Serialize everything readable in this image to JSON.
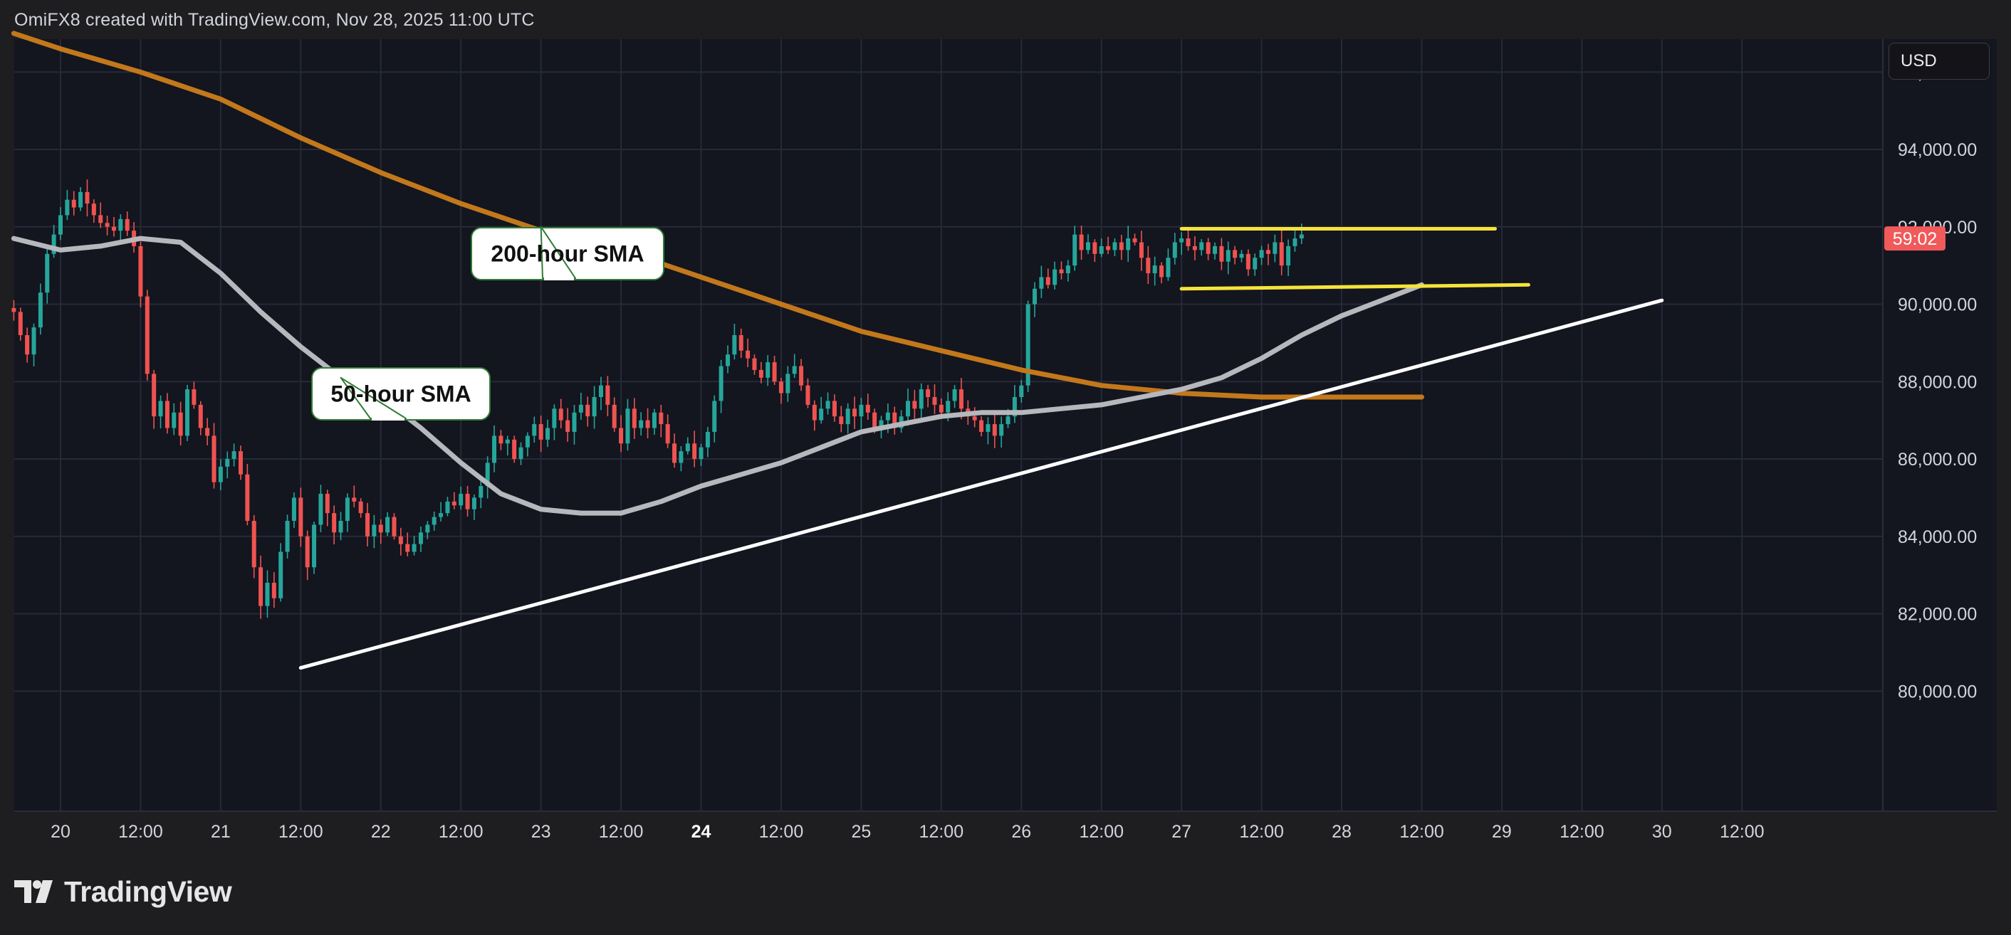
{
  "header": {
    "attribution": "OmiFX8 created with TradingView.com, Nov 28, 2025 11:00 UTC"
  },
  "currency_button": "USD",
  "logo": {
    "text": "TradingView",
    "icon": "tradingview-logo-icon"
  },
  "colors": {
    "background": "#1e1e21",
    "plot_background": "#13151f",
    "grid": "#262a38",
    "up": "#26a69a",
    "down": "#ef5350",
    "sma50": "#b6b8be",
    "sma200": "#c2781b",
    "trendline": "#ffffff",
    "range": "#f6e33a",
    "price_tag": "#f05a5a"
  },
  "chart_data": {
    "type": "candlestick",
    "title": "",
    "ylim": [
      78800,
      98500
    ],
    "y_ticks": [
      "96,000.00",
      "94,000.00",
      "92,000.00",
      "90,000.00",
      "88,000.00",
      "86,000.00",
      "84,000.00",
      "82,000.00",
      "80,000.00"
    ],
    "y_tick_values": [
      96000,
      94000,
      92000,
      90000,
      88000,
      86000,
      84000,
      82000,
      80000
    ],
    "x_ticks": [
      {
        "label": "20",
        "t": 0,
        "bold": false
      },
      {
        "label": "12:00",
        "t": 12,
        "bold": false
      },
      {
        "label": "21",
        "t": 24,
        "bold": false
      },
      {
        "label": "12:00",
        "t": 36,
        "bold": false
      },
      {
        "label": "22",
        "t": 48,
        "bold": false
      },
      {
        "label": "12:00",
        "t": 60,
        "bold": false
      },
      {
        "label": "23",
        "t": 72,
        "bold": false
      },
      {
        "label": "12:00",
        "t": 84,
        "bold": false
      },
      {
        "label": "24",
        "t": 96,
        "bold": true
      },
      {
        "label": "12:00",
        "t": 108,
        "bold": false
      },
      {
        "label": "25",
        "t": 120,
        "bold": false
      },
      {
        "label": "12:00",
        "t": 132,
        "bold": false
      },
      {
        "label": "26",
        "t": 144,
        "bold": false
      },
      {
        "label": "12:00",
        "t": 156,
        "bold": false
      },
      {
        "label": "27",
        "t": 168,
        "bold": false
      },
      {
        "label": "12:00",
        "t": 180,
        "bold": false
      },
      {
        "label": "28",
        "t": 192,
        "bold": false
      },
      {
        "label": "12:00",
        "t": 204,
        "bold": false
      },
      {
        "label": "29",
        "t": 216,
        "bold": false
      },
      {
        "label": "12:00",
        "t": 228,
        "bold": false
      },
      {
        "label": "30",
        "t": 240,
        "bold": false
      },
      {
        "label": "12:00",
        "t": 252,
        "bold": false
      }
    ],
    "xlim_hours": [
      -7,
      264
    ],
    "candle_closes": [
      89800,
      89200,
      88700,
      89400,
      90300,
      91300,
      91800,
      92300,
      92700,
      92500,
      92900,
      92600,
      92300,
      92100,
      92000,
      91900,
      92200,
      91900,
      91500,
      90200,
      88200,
      87100,
      87500,
      86800,
      87200,
      86600,
      87800,
      87400,
      86800,
      86600,
      85400,
      85800,
      86000,
      86200,
      85600,
      84400,
      83200,
      82200,
      82800,
      82400,
      83600,
      84400,
      85000,
      84000,
      83200,
      84300,
      85100,
      84600,
      84100,
      84400,
      85000,
      84900,
      84600,
      84000,
      84300,
      84100,
      84500,
      84000,
      83800,
      83600,
      83800,
      84100,
      84300,
      84500,
      84600,
      84900,
      84800,
      85100,
      84700,
      85000,
      85300,
      85900,
      86600,
      86400,
      86500,
      86000,
      86300,
      86600,
      86900,
      86500,
      86800,
      87300,
      87000,
      86700,
      87200,
      87400,
      87100,
      87600,
      87900,
      87400,
      86800,
      86400,
      87300,
      86800,
      87000,
      86800,
      87200,
      86900,
      86400,
      85900,
      86200,
      86400,
      86000,
      86300,
      86700,
      87500,
      88400,
      88700,
      89200,
      88800,
      88600,
      88300,
      88100,
      88500,
      88000,
      87700,
      88200,
      88400,
      87900,
      87400,
      87000,
      87300,
      87500,
      87100,
      86900,
      87300,
      87100,
      87400,
      87200,
      86800,
      87000,
      87200,
      86800,
      87100,
      87500,
      87300,
      87800,
      87600,
      87400,
      87200,
      87500,
      87800,
      87300,
      87100,
      87000,
      86700,
      86900,
      86600,
      86900,
      87100,
      87600,
      87900,
      90000,
      90400,
      90700,
      90500,
      90900,
      90800,
      91000,
      91800,
      91400,
      91600,
      91300,
      91500,
      91400,
      91600,
      91400,
      91700,
      91600,
      91200,
      90800,
      91000,
      90700,
      91200,
      91600,
      91700,
      91500,
      91400,
      91600,
      91300,
      91500,
      91100,
      91400,
      91200,
      91300,
      90900,
      91200,
      91400,
      91300,
      91600,
      91000,
      91500,
      91700,
      91800
    ],
    "sma50": [
      [
        -7,
        91700
      ],
      [
        0,
        91400
      ],
      [
        6,
        91500
      ],
      [
        12,
        91700
      ],
      [
        18,
        91600
      ],
      [
        24,
        90800
      ],
      [
        30,
        89800
      ],
      [
        36,
        88900
      ],
      [
        42,
        88100
      ],
      [
        48,
        87600
      ],
      [
        54,
        86800
      ],
      [
        60,
        85900
      ],
      [
        66,
        85100
      ],
      [
        72,
        84700
      ],
      [
        78,
        84600
      ],
      [
        84,
        84600
      ],
      [
        90,
        84900
      ],
      [
        96,
        85300
      ],
      [
        102,
        85600
      ],
      [
        108,
        85900
      ],
      [
        114,
        86300
      ],
      [
        120,
        86700
      ],
      [
        126,
        86900
      ],
      [
        132,
        87100
      ],
      [
        138,
        87200
      ],
      [
        144,
        87200
      ],
      [
        150,
        87300
      ],
      [
        156,
        87400
      ],
      [
        162,
        87600
      ],
      [
        168,
        87800
      ],
      [
        174,
        88100
      ],
      [
        180,
        88600
      ],
      [
        186,
        89200
      ],
      [
        192,
        89700
      ],
      [
        198,
        90100
      ],
      [
        204,
        90500
      ]
    ],
    "sma200": [
      [
        -7,
        97000
      ],
      [
        0,
        96600
      ],
      [
        12,
        96000
      ],
      [
        24,
        95300
      ],
      [
        36,
        94300
      ],
      [
        48,
        93400
      ],
      [
        60,
        92600
      ],
      [
        72,
        91900
      ],
      [
        84,
        91400
      ],
      [
        96,
        90700
      ],
      [
        108,
        90000
      ],
      [
        120,
        89300
      ],
      [
        132,
        88800
      ],
      [
        144,
        88300
      ],
      [
        156,
        87900
      ],
      [
        168,
        87700
      ],
      [
        180,
        87600
      ],
      [
        192,
        87600
      ],
      [
        204,
        87600
      ]
    ],
    "trendline": [
      [
        36,
        80600
      ],
      [
        240,
        90100
      ]
    ],
    "range_top": [
      [
        168,
        91950
      ],
      [
        215,
        91950
      ]
    ],
    "range_bottom": [
      [
        168,
        90400
      ],
      [
        220,
        90500
      ]
    ],
    "current_price": {
      "value": 91700,
      "label": "59:02"
    },
    "annotations": [
      {
        "text": "200-hour SMA",
        "anchor": [
          72,
          92000
        ]
      },
      {
        "text": "50-hour SMA",
        "anchor": [
          42,
          88100
        ]
      }
    ]
  }
}
